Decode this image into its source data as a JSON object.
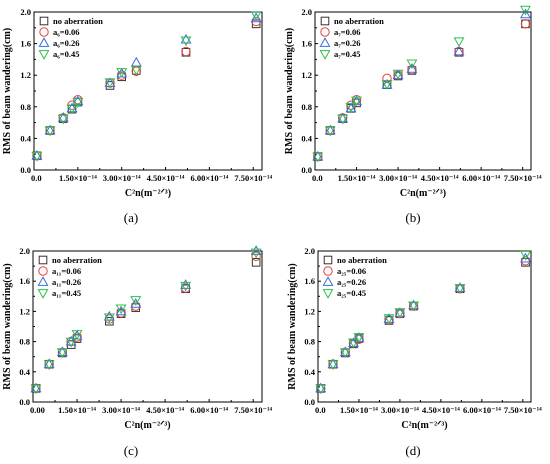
{
  "chart_data": [
    {
      "type": "scatter",
      "panel_label": "(a)",
      "ylabel": "RMS of beam wandering(cm)",
      "xlabel": "C²n(m⁻²ᐟ³)",
      "xlim": [
        0,
        7.8e-14
      ],
      "ylim": [
        0,
        2.0
      ],
      "xticks": [
        0,
        1.5e-14,
        3e-14,
        4.5e-14,
        6e-14,
        7.5e-14
      ],
      "xtick_labels": [
        "0.0",
        "1.50×10⁻¹⁴",
        "3.00×10⁻¹⁴",
        "4.50×10⁻¹⁴",
        "6.00×10⁻¹⁴",
        "7.50×10⁻¹⁴"
      ],
      "yticks": [
        0.0,
        0.4,
        0.8,
        1.2,
        1.6,
        2.0
      ],
      "ytick_labels": [
        "0.0",
        "0.4",
        "0.8",
        "1.2",
        "1.6",
        "2.0"
      ],
      "legend_position": "top-left",
      "series": [
        {
          "name": "no aberration",
          "marker": "square",
          "color": "#333333",
          "points": [
            [
              1e-15,
              0.18
            ],
            [
              5.5e-15,
              0.5
            ],
            [
              1e-14,
              0.65
            ],
            [
              1.3e-14,
              0.77
            ],
            [
              1.5e-14,
              0.86
            ],
            [
              2.6e-14,
              1.07
            ],
            [
              3e-14,
              1.18
            ],
            [
              3.5e-14,
              1.26
            ],
            [
              5.2e-14,
              1.49
            ],
            [
              7.6e-14,
              1.85
            ]
          ]
        },
        {
          "name": "a₆=0.06",
          "marker": "circle",
          "color": "#e8413c",
          "points": [
            [
              1e-15,
              0.18
            ],
            [
              5.5e-15,
              0.5
            ],
            [
              1e-14,
              0.66
            ],
            [
              1.3e-14,
              0.82
            ],
            [
              1.5e-14,
              0.89
            ],
            [
              2.6e-14,
              1.1
            ],
            [
              3e-14,
              1.2
            ],
            [
              3.5e-14,
              1.25
            ],
            [
              5.2e-14,
              1.5
            ],
            [
              7.6e-14,
              1.88
            ]
          ]
        },
        {
          "name": "a₆=0.26",
          "marker": "triangle-up",
          "color": "#3b6fe0",
          "points": [
            [
              1e-15,
              0.18
            ],
            [
              5.5e-15,
              0.5
            ],
            [
              1e-14,
              0.66
            ],
            [
              1.3e-14,
              0.78
            ],
            [
              1.5e-14,
              0.87
            ],
            [
              2.6e-14,
              1.1
            ],
            [
              3e-14,
              1.22
            ],
            [
              3.5e-14,
              1.36
            ],
            [
              5.2e-14,
              1.65
            ],
            [
              7.6e-14,
              1.92
            ]
          ]
        },
        {
          "name": "a₆=0.45",
          "marker": "triangle-down",
          "color": "#2fbf4a",
          "points": [
            [
              1e-15,
              0.18
            ],
            [
              5.5e-15,
              0.5
            ],
            [
              1e-14,
              0.65
            ],
            [
              1.3e-14,
              0.78
            ],
            [
              1.5e-14,
              0.86
            ],
            [
              2.6e-14,
              1.11
            ],
            [
              3e-14,
              1.24
            ],
            [
              3.5e-14,
              1.27
            ],
            [
              5.2e-14,
              1.64
            ],
            [
              7.6e-14,
              1.96
            ]
          ]
        }
      ]
    },
    {
      "type": "scatter",
      "panel_label": "(b)",
      "ylabel": "RMS of beam wandering(cm)",
      "xlabel": "C²n(m⁻²ᐟ³)",
      "xlim": [
        0,
        7.8e-14
      ],
      "ylim": [
        0,
        2.0
      ],
      "xticks": [
        0,
        1.5e-14,
        3e-14,
        4.5e-14,
        6e-14,
        7.5e-14
      ],
      "xtick_labels": [
        "0.0",
        "1.50×10⁻¹⁴",
        "3.00×10⁻¹⁴",
        "4.50×10⁻¹⁴",
        "6.00×10⁻¹⁴",
        "7.50×10⁻¹⁴"
      ],
      "yticks": [
        0.0,
        0.4,
        0.8,
        1.2,
        1.6,
        2.0
      ],
      "ytick_labels": [
        "0.0",
        "0.4",
        "0.8",
        "1.2",
        "1.6",
        "2.0"
      ],
      "legend_position": "top-left",
      "series": [
        {
          "name": "no aberration",
          "marker": "square",
          "color": "#333333",
          "points": [
            [
              1e-15,
              0.17
            ],
            [
              5.5e-15,
              0.5
            ],
            [
              1e-14,
              0.65
            ],
            [
              1.3e-14,
              0.78
            ],
            [
              1.5e-14,
              0.85
            ],
            [
              2.6e-14,
              1.08
            ],
            [
              3e-14,
              1.19
            ],
            [
              3.5e-14,
              1.26
            ],
            [
              5.2e-14,
              1.49
            ],
            [
              7.6e-14,
              1.85
            ]
          ]
        },
        {
          "name": "a₇=0.06",
          "marker": "circle",
          "color": "#e8413c",
          "points": [
            [
              1e-15,
              0.17
            ],
            [
              5.5e-15,
              0.5
            ],
            [
              1e-14,
              0.66
            ],
            [
              1.3e-14,
              0.82
            ],
            [
              1.5e-14,
              0.89
            ],
            [
              2.6e-14,
              1.16
            ],
            [
              3e-14,
              1.2
            ],
            [
              3.5e-14,
              1.27
            ],
            [
              5.2e-14,
              1.5
            ],
            [
              7.6e-14,
              1.85
            ]
          ]
        },
        {
          "name": "a₇=0.26",
          "marker": "triangle-up",
          "color": "#3b6fe0",
          "points": [
            [
              1e-15,
              0.17
            ],
            [
              5.5e-15,
              0.5
            ],
            [
              1e-14,
              0.65
            ],
            [
              1.3e-14,
              0.78
            ],
            [
              1.5e-14,
              0.87
            ],
            [
              2.6e-14,
              1.08
            ],
            [
              3e-14,
              1.2
            ],
            [
              3.5e-14,
              1.28
            ],
            [
              5.2e-14,
              1.5
            ],
            [
              7.6e-14,
              1.97
            ]
          ]
        },
        {
          "name": "a₇=0.45",
          "marker": "triangle-down",
          "color": "#2fbf4a",
          "points": [
            [
              1e-15,
              0.17
            ],
            [
              5.5e-15,
              0.5
            ],
            [
              1e-14,
              0.65
            ],
            [
              1.3e-14,
              0.8
            ],
            [
              1.5e-14,
              0.88
            ],
            [
              2.6e-14,
              1.09
            ],
            [
              3e-14,
              1.22
            ],
            [
              3.5e-14,
              1.35
            ],
            [
              5.2e-14,
              1.63
            ],
            [
              7.6e-14,
              2.03
            ]
          ]
        }
      ]
    },
    {
      "type": "scatter",
      "panel_label": "(c)",
      "ylabel": "RMS of beam wandering(cm)",
      "xlabel": "C²n(m⁻²ᐟ³)",
      "xlim": [
        0,
        7.8e-14
      ],
      "ylim": [
        0,
        2.0
      ],
      "xticks": [
        0,
        1.5e-14,
        3e-14,
        4.5e-14,
        6e-14,
        7.5e-14
      ],
      "xtick_labels": [
        "0.00",
        "1.50×10⁻¹⁴",
        "3.00×10⁻¹⁴",
        "4.50×10⁻¹⁴",
        "6.00×10⁻¹⁴",
        "7.50×10⁻¹⁴"
      ],
      "yticks": [
        0.0,
        0.4,
        0.8,
        1.2,
        1.6,
        2.0
      ],
      "ytick_labels": [
        "0.0",
        "0.4",
        "0.8",
        "1.2",
        "1.6",
        "2.0"
      ],
      "legend_position": "top-left",
      "series": [
        {
          "name": "no aberration",
          "marker": "square",
          "color": "#333333",
          "points": [
            [
              1e-15,
              0.18
            ],
            [
              5.5e-15,
              0.5
            ],
            [
              1e-14,
              0.65
            ],
            [
              1.3e-14,
              0.76
            ],
            [
              1.5e-14,
              0.84
            ],
            [
              2.6e-14,
              1.07
            ],
            [
              3e-14,
              1.17
            ],
            [
              3.5e-14,
              1.25
            ],
            [
              5.2e-14,
              1.5
            ],
            [
              7.6e-14,
              1.85
            ]
          ]
        },
        {
          "name": "a₁₁=0.06",
          "marker": "circle",
          "color": "#e8413c",
          "points": [
            [
              1e-15,
              0.18
            ],
            [
              5.5e-15,
              0.5
            ],
            [
              1e-14,
              0.66
            ],
            [
              1.3e-14,
              0.8
            ],
            [
              1.5e-14,
              0.86
            ],
            [
              2.6e-14,
              1.1
            ],
            [
              3e-14,
              1.18
            ],
            [
              3.5e-14,
              1.27
            ],
            [
              5.2e-14,
              1.51
            ],
            [
              7.6e-14,
              1.93
            ]
          ]
        },
        {
          "name": "a₁₁=0.26",
          "marker": "triangle-up",
          "color": "#3b6fe0",
          "points": [
            [
              1e-15,
              0.18
            ],
            [
              5.5e-15,
              0.5
            ],
            [
              1e-14,
              0.66
            ],
            [
              1.3e-14,
              0.8
            ],
            [
              1.5e-14,
              0.88
            ],
            [
              2.6e-14,
              1.13
            ],
            [
              3e-14,
              1.2
            ],
            [
              3.5e-14,
              1.3
            ],
            [
              5.2e-14,
              1.55
            ],
            [
              7.6e-14,
              2.0
            ]
          ]
        },
        {
          "name": "a₁₁=0.45",
          "marker": "triangle-down",
          "color": "#2fbf4a",
          "points": [
            [
              1e-15,
              0.18
            ],
            [
              5.5e-15,
              0.5
            ],
            [
              1e-14,
              0.66
            ],
            [
              1.3e-14,
              0.8
            ],
            [
              1.5e-14,
              0.9
            ],
            [
              2.6e-14,
              1.12
            ],
            [
              3e-14,
              1.24
            ],
            [
              3.5e-14,
              1.35
            ],
            [
              5.2e-14,
              1.54
            ],
            [
              7.6e-14,
              1.98
            ]
          ]
        }
      ]
    },
    {
      "type": "scatter",
      "panel_label": "(d)",
      "ylabel": "RMS of beam wandering(cm)",
      "xlabel": "C²n(m⁻²ᐟ³)",
      "xlim": [
        0,
        7.8e-14
      ],
      "ylim": [
        0,
        2.0
      ],
      "xticks": [
        0,
        1.5e-14,
        3e-14,
        4.5e-14,
        6e-14,
        7.5e-14
      ],
      "xtick_labels": [
        "0.0",
        "1.50×10⁻¹⁴",
        "3.00×10⁻¹⁴",
        "4.50×10⁻¹⁴",
        "6.00×10⁻¹⁴",
        "7.50×10⁻¹⁴"
      ],
      "yticks": [
        0.0,
        0.4,
        0.8,
        1.2,
        1.6,
        2.0
      ],
      "ytick_labels": [
        "0.0",
        "0.4",
        "0.8",
        "1.2",
        "1.6",
        "2.0"
      ],
      "legend_position": "top-left",
      "series": [
        {
          "name": "no aberration",
          "marker": "square",
          "color": "#333333",
          "points": [
            [
              1e-15,
              0.18
            ],
            [
              5.5e-15,
              0.5
            ],
            [
              1e-14,
              0.65
            ],
            [
              1.3e-14,
              0.77
            ],
            [
              1.5e-14,
              0.84
            ],
            [
              2.6e-14,
              1.08
            ],
            [
              3e-14,
              1.17
            ],
            [
              3.5e-14,
              1.27
            ],
            [
              5.2e-14,
              1.5
            ],
            [
              7.6e-14,
              1.85
            ]
          ]
        },
        {
          "name": "a₂₅=0.06",
          "marker": "circle",
          "color": "#e8413c",
          "points": [
            [
              1e-15,
              0.18
            ],
            [
              5.5e-15,
              0.5
            ],
            [
              1e-14,
              0.66
            ],
            [
              1.3e-14,
              0.78
            ],
            [
              1.5e-14,
              0.83
            ],
            [
              2.6e-14,
              1.09
            ],
            [
              3e-14,
              1.17
            ],
            [
              3.5e-14,
              1.27
            ],
            [
              5.2e-14,
              1.5
            ],
            [
              7.6e-14,
              1.87
            ]
          ]
        },
        {
          "name": "a₂₅=0.26",
          "marker": "triangle-up",
          "color": "#3b6fe0",
          "points": [
            [
              1e-15,
              0.18
            ],
            [
              5.5e-15,
              0.5
            ],
            [
              1e-14,
              0.66
            ],
            [
              1.3e-14,
              0.78
            ],
            [
              1.5e-14,
              0.85
            ],
            [
              2.6e-14,
              1.1
            ],
            [
              3e-14,
              1.18
            ],
            [
              3.5e-14,
              1.28
            ],
            [
              5.2e-14,
              1.51
            ],
            [
              7.6e-14,
              1.9
            ]
          ]
        },
        {
          "name": "a₂₅=0.45",
          "marker": "triangle-down",
          "color": "#2fbf4a",
          "points": [
            [
              1e-15,
              0.18
            ],
            [
              5.5e-15,
              0.5
            ],
            [
              1e-14,
              0.66
            ],
            [
              1.3e-14,
              0.79
            ],
            [
              1.5e-14,
              0.86
            ],
            [
              2.6e-14,
              1.11
            ],
            [
              3e-14,
              1.19
            ],
            [
              3.5e-14,
              1.28
            ],
            [
              5.2e-14,
              1.51
            ],
            [
              7.6e-14,
              1.95
            ]
          ]
        }
      ]
    }
  ]
}
